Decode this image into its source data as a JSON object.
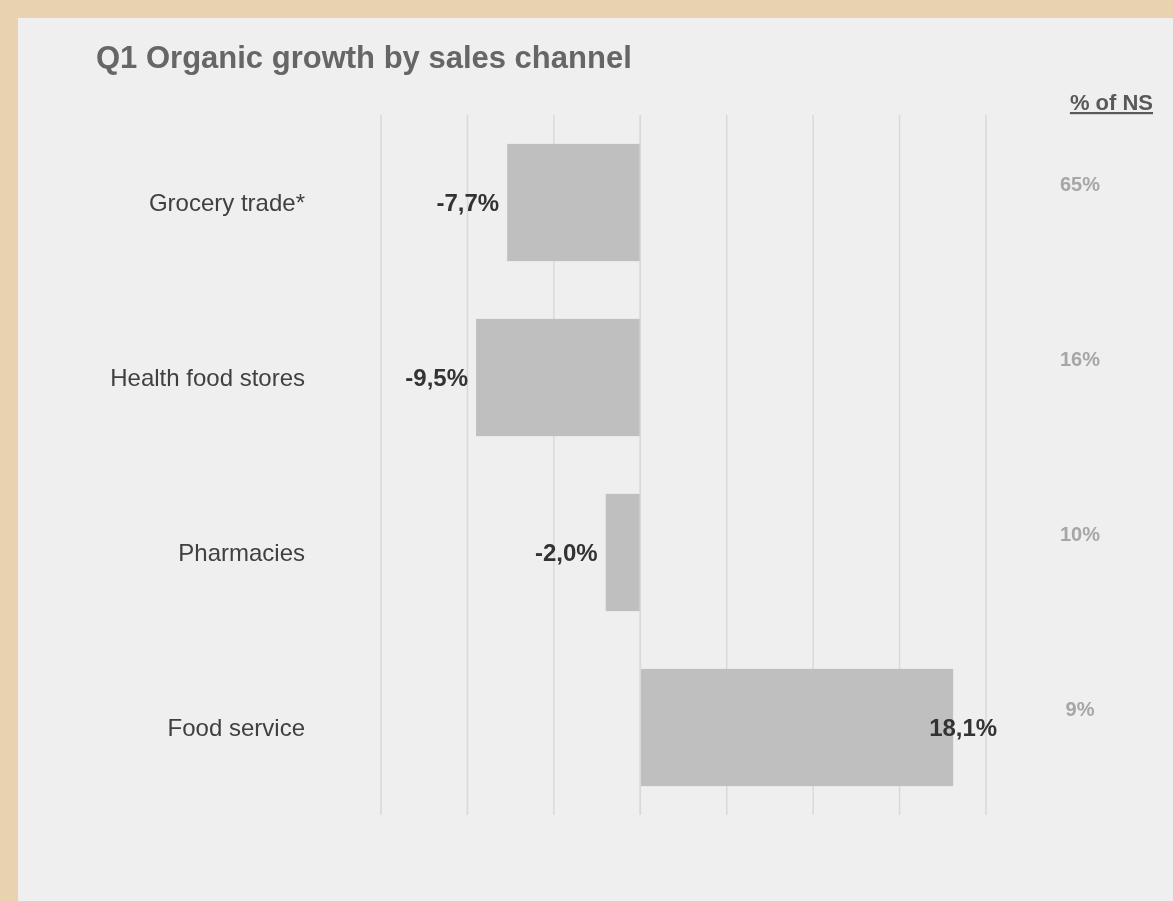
{
  "chart_data": {
    "type": "bar",
    "orientation": "horizontal",
    "title": "Q1 Organic growth by sales channel",
    "categories": [
      "Grocery trade*",
      "Health food stores",
      "Pharmacies",
      "Food service"
    ],
    "values": [
      -7.7,
      -9.5,
      -2.0,
      18.1
    ],
    "value_labels": [
      "-7,7%",
      "-9,5%",
      "-2,0%",
      "18,1%"
    ],
    "color": "#bfbfbf",
    "xlim": [
      -15,
      20
    ],
    "xticks": [
      {
        "value": -15,
        "label": null
      },
      {
        "value": -10,
        "label": null
      },
      {
        "value": -5,
        "label": null
      },
      {
        "value": 0,
        "label": null
      },
      {
        "value": 5,
        "label": null
      },
      {
        "value": 10,
        "label": null
      },
      {
        "value": 15,
        "label": null
      },
      {
        "value": 20,
        "label": null
      }
    ],
    "tick_labels": "y",
    "grid": "x",
    "legend_title": "% of NS",
    "annotations": [
      "65%",
      "16%",
      "10%",
      "9%"
    ]
  }
}
